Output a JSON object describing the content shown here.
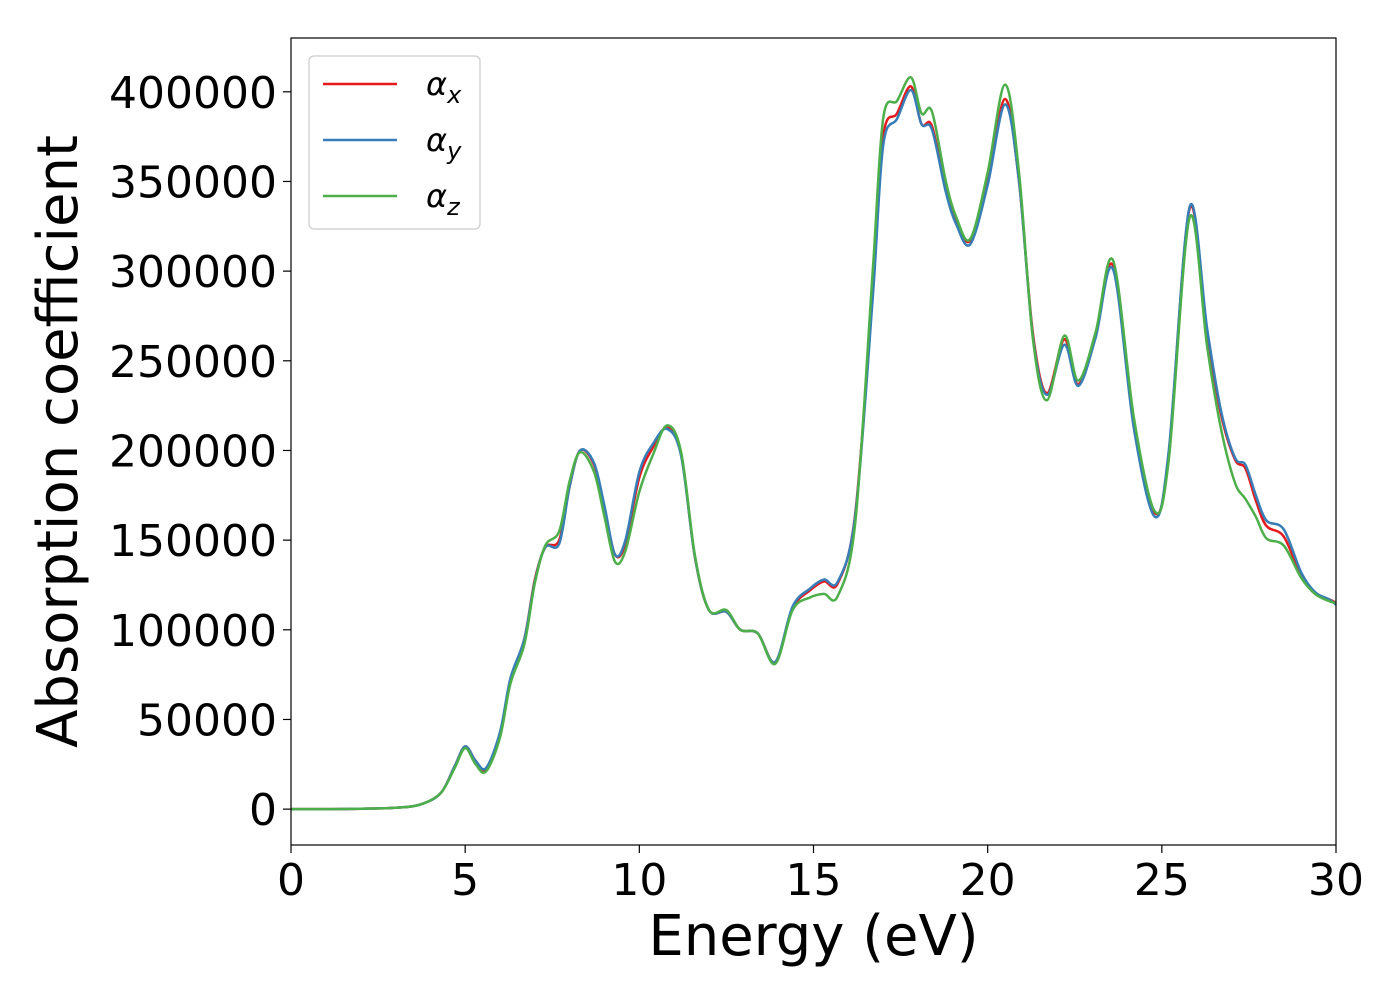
{
  "chart_data": {
    "type": "line",
    "title": "",
    "xlabel": "Energy (eV)",
    "ylabel": "Absorption coefficient",
    "xlim": [
      0,
      30
    ],
    "ylim": [
      -20000,
      430000
    ],
    "xticks": [
      0,
      5,
      10,
      15,
      20,
      25,
      30
    ],
    "xtick_labels": [
      "0",
      "5",
      "10",
      "15",
      "20",
      "25",
      "30"
    ],
    "yticks": [
      0,
      50000,
      100000,
      150000,
      200000,
      250000,
      300000,
      350000,
      400000
    ],
    "ytick_labels": [
      "0",
      "50000",
      "100000",
      "150000",
      "200000",
      "250000",
      "300000",
      "350000",
      "400000"
    ],
    "grid": false,
    "legend_position": "top-left",
    "series": [
      {
        "name": "αx",
        "symbol": "α",
        "subscript": "x",
        "color": "#e41a1c",
        "points": [
          [
            0,
            0
          ],
          [
            1,
            0
          ],
          [
            2,
            200
          ],
          [
            3,
            800
          ],
          [
            3.7,
            2500
          ],
          [
            4.3,
            9000
          ],
          [
            4.7,
            24000
          ],
          [
            5,
            35000
          ],
          [
            5.3,
            27000
          ],
          [
            5.6,
            22000
          ],
          [
            6,
            42000
          ],
          [
            6.3,
            72000
          ],
          [
            6.7,
            95000
          ],
          [
            7,
            128000
          ],
          [
            7.3,
            146000
          ],
          [
            7.7,
            150000
          ],
          [
            8,
            180000
          ],
          [
            8.3,
            200000
          ],
          [
            8.7,
            192000
          ],
          [
            9,
            168000
          ],
          [
            9.3,
            142000
          ],
          [
            9.6,
            148000
          ],
          [
            10,
            185000
          ],
          [
            10.4,
            202000
          ],
          [
            10.8,
            213000
          ],
          [
            11.2,
            198000
          ],
          [
            11.6,
            140000
          ],
          [
            12,
            111000
          ],
          [
            12.5,
            110000
          ],
          [
            12.9,
            100000
          ],
          [
            13.4,
            98000
          ],
          [
            13.9,
            82000
          ],
          [
            14.4,
            112000
          ],
          [
            14.9,
            122000
          ],
          [
            15.3,
            127000
          ],
          [
            15.7,
            126000
          ],
          [
            16.2,
            165000
          ],
          [
            16.7,
            290000
          ],
          [
            17,
            375000
          ],
          [
            17.4,
            388000
          ],
          [
            17.8,
            403000
          ],
          [
            18.1,
            382000
          ],
          [
            18.4,
            381000
          ],
          [
            18.8,
            345000
          ],
          [
            19.1,
            328000
          ],
          [
            19.5,
            317000
          ],
          [
            20,
            350000
          ],
          [
            20.5,
            396000
          ],
          [
            20.9,
            350000
          ],
          [
            21.3,
            265000
          ],
          [
            21.7,
            232000
          ],
          [
            22.2,
            262000
          ],
          [
            22.6,
            237000
          ],
          [
            23.1,
            265000
          ],
          [
            23.6,
            303000
          ],
          [
            24.2,
            215000
          ],
          [
            24.8,
            165000
          ],
          [
            25.2,
            198000
          ],
          [
            25.8,
            335000
          ],
          [
            26.3,
            265000
          ],
          [
            26.7,
            220000
          ],
          [
            27.1,
            195000
          ],
          [
            27.4,
            190000
          ],
          [
            27.7,
            172000
          ],
          [
            28,
            158000
          ],
          [
            28.5,
            152000
          ],
          [
            29,
            130000
          ],
          [
            29.4,
            120000
          ],
          [
            29.8,
            117000
          ],
          [
            30,
            115000
          ]
        ]
      },
      {
        "name": "αy",
        "symbol": "α",
        "subscript": "y",
        "color": "#377eb8",
        "points": [
          [
            0,
            0
          ],
          [
            1,
            0
          ],
          [
            2,
            200
          ],
          [
            3,
            800
          ],
          [
            3.7,
            2500
          ],
          [
            4.3,
            9000
          ],
          [
            4.7,
            24000
          ],
          [
            5,
            35000
          ],
          [
            5.3,
            27000
          ],
          [
            5.6,
            23000
          ],
          [
            6,
            43000
          ],
          [
            6.3,
            73000
          ],
          [
            6.7,
            95000
          ],
          [
            7,
            127000
          ],
          [
            7.3,
            146000
          ],
          [
            7.7,
            148000
          ],
          [
            8,
            180000
          ],
          [
            8.3,
            200000
          ],
          [
            8.7,
            193000
          ],
          [
            9,
            169000
          ],
          [
            9.3,
            142000
          ],
          [
            9.6,
            150000
          ],
          [
            10,
            188000
          ],
          [
            10.4,
            204000
          ],
          [
            10.8,
            212000
          ],
          [
            11.2,
            197000
          ],
          [
            11.6,
            140000
          ],
          [
            12,
            111000
          ],
          [
            12.5,
            110000
          ],
          [
            12.9,
            100000
          ],
          [
            13.4,
            98000
          ],
          [
            13.9,
            82000
          ],
          [
            14.4,
            113000
          ],
          [
            14.9,
            123000
          ],
          [
            15.3,
            128000
          ],
          [
            15.7,
            127000
          ],
          [
            16.2,
            164000
          ],
          [
            16.7,
            285000
          ],
          [
            17,
            370000
          ],
          [
            17.4,
            385000
          ],
          [
            17.8,
            401000
          ],
          [
            18.1,
            382000
          ],
          [
            18.4,
            379000
          ],
          [
            18.8,
            344000
          ],
          [
            19.1,
            326000
          ],
          [
            19.5,
            315000
          ],
          [
            20,
            348000
          ],
          [
            20.5,
            393000
          ],
          [
            20.9,
            350000
          ],
          [
            21.3,
            263000
          ],
          [
            21.7,
            231000
          ],
          [
            22.2,
            259000
          ],
          [
            22.6,
            236000
          ],
          [
            23.1,
            263000
          ],
          [
            23.6,
            301000
          ],
          [
            24.2,
            212000
          ],
          [
            24.8,
            163000
          ],
          [
            25.2,
            200000
          ],
          [
            25.8,
            336000
          ],
          [
            26.3,
            268000
          ],
          [
            26.7,
            222000
          ],
          [
            27.1,
            196000
          ],
          [
            27.4,
            192000
          ],
          [
            27.7,
            175000
          ],
          [
            28,
            161000
          ],
          [
            28.5,
            156000
          ],
          [
            29,
            132000
          ],
          [
            29.4,
            121000
          ],
          [
            29.8,
            117000
          ],
          [
            30,
            114000
          ]
        ]
      },
      {
        "name": "αz",
        "symbol": "α",
        "subscript": "z",
        "color": "#4daf4a",
        "points": [
          [
            0,
            0
          ],
          [
            1,
            0
          ],
          [
            2,
            200
          ],
          [
            3,
            800
          ],
          [
            3.7,
            2500
          ],
          [
            4.3,
            9000
          ],
          [
            4.7,
            23000
          ],
          [
            5,
            34000
          ],
          [
            5.3,
            25000
          ],
          [
            5.6,
            21000
          ],
          [
            6,
            40000
          ],
          [
            6.3,
            70000
          ],
          [
            6.7,
            92000
          ],
          [
            7,
            126000
          ],
          [
            7.3,
            147000
          ],
          [
            7.7,
            155000
          ],
          [
            8,
            183000
          ],
          [
            8.3,
            199000
          ],
          [
            8.7,
            188000
          ],
          [
            9,
            163000
          ],
          [
            9.3,
            138000
          ],
          [
            9.6,
            144000
          ],
          [
            10,
            177000
          ],
          [
            10.4,
            198000
          ],
          [
            10.8,
            214000
          ],
          [
            11.2,
            199000
          ],
          [
            11.6,
            141000
          ],
          [
            12,
            111000
          ],
          [
            12.5,
            111000
          ],
          [
            12.9,
            100000
          ],
          [
            13.4,
            98000
          ],
          [
            13.9,
            81000
          ],
          [
            14.4,
            111000
          ],
          [
            14.9,
            118000
          ],
          [
            15.3,
            120000
          ],
          [
            15.7,
            119000
          ],
          [
            16.2,
            160000
          ],
          [
            16.7,
            300000
          ],
          [
            17,
            385000
          ],
          [
            17.4,
            395000
          ],
          [
            17.8,
            408000
          ],
          [
            18.1,
            388000
          ],
          [
            18.4,
            389000
          ],
          [
            18.8,
            350000
          ],
          [
            19.1,
            330000
          ],
          [
            19.5,
            318000
          ],
          [
            20,
            355000
          ],
          [
            20.5,
            404000
          ],
          [
            20.9,
            355000
          ],
          [
            21.3,
            262000
          ],
          [
            21.7,
            228000
          ],
          [
            22.2,
            264000
          ],
          [
            22.6,
            239000
          ],
          [
            23.1,
            266000
          ],
          [
            23.6,
            306000
          ],
          [
            24.2,
            218000
          ],
          [
            24.8,
            166000
          ],
          [
            25.2,
            195000
          ],
          [
            25.8,
            330000
          ],
          [
            26.3,
            258000
          ],
          [
            26.7,
            212000
          ],
          [
            27.1,
            182000
          ],
          [
            27.4,
            173000
          ],
          [
            27.7,
            163000
          ],
          [
            28,
            151000
          ],
          [
            28.5,
            147000
          ],
          [
            29,
            129000
          ],
          [
            29.4,
            120000
          ],
          [
            29.8,
            116000
          ],
          [
            30,
            115000
          ]
        ]
      }
    ]
  }
}
